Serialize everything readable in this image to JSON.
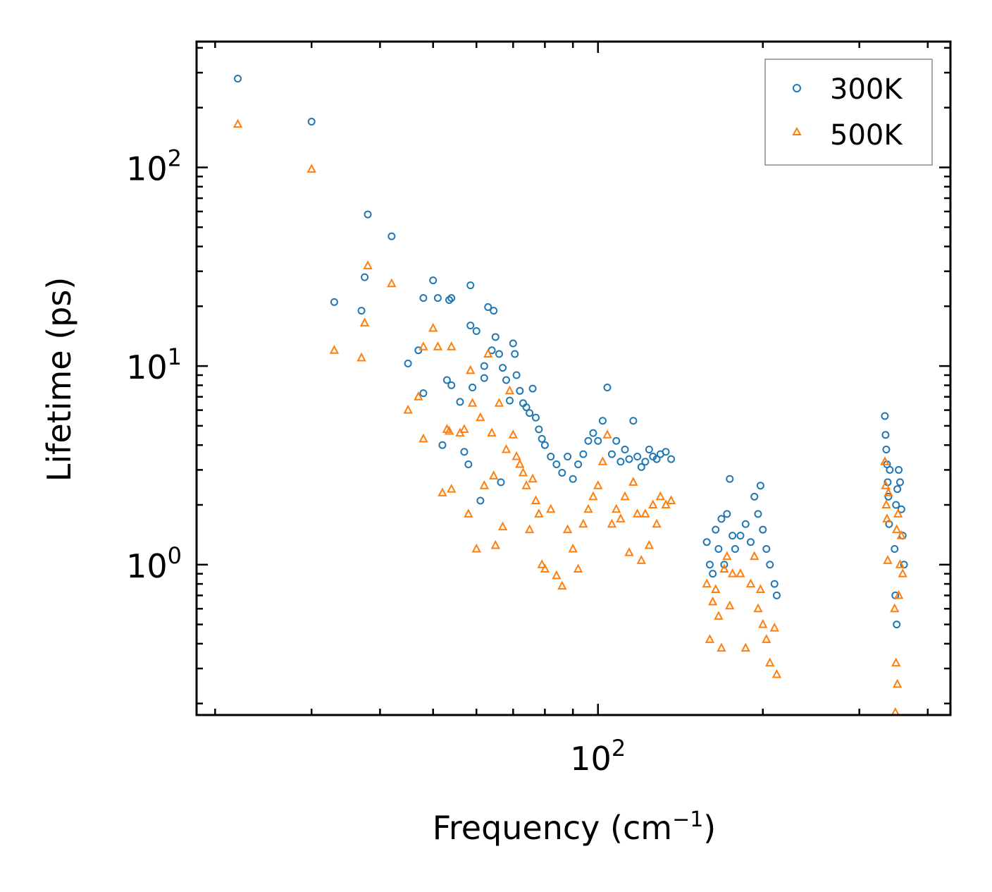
{
  "chart_data": {
    "type": "scatter",
    "title": "",
    "xlabel": "Frequency (cm",
    "xlabel_sup": "−1",
    "xlabel_end": ")",
    "ylabel": "Lifetime (ps)",
    "xscale": "log",
    "yscale": "log",
    "xlim": [
      18.5,
      440
    ],
    "ylim": [
      0.175,
      430
    ],
    "x_major_ticks": [
      {
        "value": 100,
        "base": "10",
        "exp": "2"
      }
    ],
    "y_major_ticks": [
      {
        "value": 1,
        "base": "10",
        "exp": "0"
      },
      {
        "value": 10,
        "base": "10",
        "exp": "1"
      },
      {
        "value": 100,
        "base": "10",
        "exp": "2"
      }
    ],
    "legend_position": "top-right",
    "colors": {
      "300K": "#1f77b4",
      "500K": "#ff7f0e"
    },
    "series": [
      {
        "name": "300K",
        "marker": "circle",
        "points": [
          [
            22,
            280
          ],
          [
            30,
            170
          ],
          [
            38,
            58
          ],
          [
            42,
            45
          ],
          [
            33,
            21
          ],
          [
            37,
            19
          ],
          [
            37.5,
            28
          ],
          [
            45,
            10.3
          ],
          [
            47,
            12
          ],
          [
            48,
            7.3
          ],
          [
            48,
            22
          ],
          [
            50,
            27
          ],
          [
            51,
            22
          ],
          [
            52,
            4
          ],
          [
            53,
            8.5
          ],
          [
            53.5,
            21.5
          ],
          [
            54,
            8
          ],
          [
            54,
            22
          ],
          [
            56,
            6.6
          ],
          [
            57,
            3.7
          ],
          [
            58,
            3.2
          ],
          [
            58.5,
            25.5
          ],
          [
            58.5,
            16
          ],
          [
            59,
            7.8
          ],
          [
            60,
            15
          ],
          [
            61,
            2.1
          ],
          [
            62,
            10
          ],
          [
            62,
            8.7
          ],
          [
            63,
            19.8
          ],
          [
            64,
            12
          ],
          [
            64.5,
            19
          ],
          [
            65,
            14
          ],
          [
            66,
            11.5
          ],
          [
            66.5,
            2.6
          ],
          [
            67,
            9.8
          ],
          [
            68,
            8.5
          ],
          [
            69,
            6.7
          ],
          [
            70,
            13
          ],
          [
            70.5,
            11.5
          ],
          [
            71,
            9
          ],
          [
            72,
            7.5
          ],
          [
            73,
            6.5
          ],
          [
            74,
            6.2
          ],
          [
            75,
            5.8
          ],
          [
            76,
            7.7
          ],
          [
            77,
            5.5
          ],
          [
            78,
            4.8
          ],
          [
            79,
            4.3
          ],
          [
            80,
            4
          ],
          [
            82,
            3.5
          ],
          [
            84,
            3.2
          ],
          [
            86,
            2.9
          ],
          [
            88,
            3.5
          ],
          [
            90,
            2.7
          ],
          [
            92,
            3.2
          ],
          [
            94,
            3.6
          ],
          [
            96,
            4.2
          ],
          [
            98,
            4.6
          ],
          [
            100,
            4.2
          ],
          [
            102,
            5.3
          ],
          [
            104,
            7.8
          ],
          [
            106,
            3.6
          ],
          [
            108,
            4.2
          ],
          [
            110,
            3.3
          ],
          [
            112,
            3.8
          ],
          [
            114,
            3.4
          ],
          [
            116,
            5.3
          ],
          [
            118,
            3.5
          ],
          [
            120,
            3.1
          ],
          [
            122,
            3.3
          ],
          [
            124,
            3.8
          ],
          [
            126,
            3.5
          ],
          [
            128,
            3.4
          ],
          [
            130,
            3.6
          ],
          [
            133,
            3.7
          ],
          [
            136,
            3.4
          ],
          [
            158,
            1.3
          ],
          [
            160,
            1.0
          ],
          [
            162,
            0.9
          ],
          [
            164,
            1.5
          ],
          [
            166,
            1.2
          ],
          [
            168,
            1.7
          ],
          [
            170,
            1.0
          ],
          [
            172,
            1.8
          ],
          [
            174,
            2.7
          ],
          [
            176,
            1.4
          ],
          [
            178,
            1.2
          ],
          [
            182,
            1.4
          ],
          [
            186,
            1.6
          ],
          [
            190,
            1.3
          ],
          [
            193,
            2.2
          ],
          [
            196,
            1.8
          ],
          [
            198,
            2.5
          ],
          [
            200,
            1.5
          ],
          [
            203,
            1.2
          ],
          [
            206,
            1.0
          ],
          [
            210,
            0.8
          ],
          [
            212,
            0.7
          ],
          [
            334,
            5.6
          ],
          [
            335,
            4.5
          ],
          [
            336,
            3.8
          ],
          [
            337,
            3.2
          ],
          [
            338,
            2.6
          ],
          [
            339,
            2.2
          ],
          [
            340,
            1.6
          ],
          [
            341,
            3.0
          ],
          [
            348,
            1.2
          ],
          [
            350,
            2.0
          ],
          [
            352,
            2.4
          ],
          [
            354,
            3.0
          ],
          [
            356,
            2.6
          ],
          [
            358,
            1.9
          ],
          [
            360,
            1.4
          ],
          [
            362,
            1.0
          ],
          [
            349,
            0.7
          ],
          [
            351,
            0.5
          ]
        ]
      },
      {
        "name": "500K",
        "marker": "triangle",
        "points": [
          [
            22,
            165
          ],
          [
            30,
            98
          ],
          [
            33,
            12
          ],
          [
            37,
            11
          ],
          [
            37.5,
            16.5
          ],
          [
            38,
            32
          ],
          [
            42,
            26
          ],
          [
            45,
            6
          ],
          [
            47,
            7
          ],
          [
            48,
            4.3
          ],
          [
            48,
            12.5
          ],
          [
            50,
            15.5
          ],
          [
            51,
            12.5
          ],
          [
            52,
            2.3
          ],
          [
            53,
            4.8
          ],
          [
            53.5,
            4.7
          ],
          [
            54,
            2.4
          ],
          [
            54,
            12.5
          ],
          [
            56,
            4.6
          ],
          [
            57,
            4.8
          ],
          [
            58,
            1.8
          ],
          [
            58.5,
            9.5
          ],
          [
            59,
            6.5
          ],
          [
            60,
            1.2
          ],
          [
            61,
            5.5
          ],
          [
            62,
            2.5
          ],
          [
            63,
            11.5
          ],
          [
            64,
            4.6
          ],
          [
            64.5,
            2.8
          ],
          [
            65,
            1.25
          ],
          [
            66,
            6.5
          ],
          [
            67,
            1.55
          ],
          [
            68,
            3.8
          ],
          [
            69,
            7.5
          ],
          [
            70,
            4.5
          ],
          [
            71,
            3.5
          ],
          [
            72,
            3.2
          ],
          [
            73,
            2.9
          ],
          [
            74,
            2.5
          ],
          [
            75,
            1.5
          ],
          [
            76,
            2.7
          ],
          [
            77,
            2.1
          ],
          [
            78,
            1.8
          ],
          [
            79,
            1.0
          ],
          [
            80,
            0.95
          ],
          [
            82,
            1.9
          ],
          [
            84,
            0.88
          ],
          [
            86,
            0.78
          ],
          [
            88,
            1.5
          ],
          [
            90,
            1.2
          ],
          [
            92,
            0.95
          ],
          [
            94,
            1.6
          ],
          [
            96,
            1.9
          ],
          [
            98,
            2.2
          ],
          [
            100,
            2.5
          ],
          [
            102,
            3.3
          ],
          [
            104,
            4.5
          ],
          [
            106,
            1.6
          ],
          [
            108,
            1.9
          ],
          [
            110,
            1.7
          ],
          [
            112,
            2.2
          ],
          [
            114,
            1.15
          ],
          [
            116,
            2.6
          ],
          [
            118,
            1.8
          ],
          [
            120,
            1.05
          ],
          [
            122,
            1.8
          ],
          [
            124,
            1.25
          ],
          [
            126,
            2.0
          ],
          [
            128,
            1.6
          ],
          [
            130,
            2.2
          ],
          [
            133,
            2.0
          ],
          [
            136,
            2.1
          ],
          [
            158,
            0.8
          ],
          [
            160,
            0.42
          ],
          [
            162,
            0.65
          ],
          [
            164,
            0.75
          ],
          [
            166,
            0.55
          ],
          [
            168,
            0.38
          ],
          [
            170,
            0.95
          ],
          [
            172,
            1.1
          ],
          [
            174,
            0.62
          ],
          [
            176,
            0.9
          ],
          [
            182,
            0.9
          ],
          [
            186,
            0.38
          ],
          [
            190,
            0.8
          ],
          [
            193,
            1.1
          ],
          [
            196,
            0.6
          ],
          [
            198,
            0.75
          ],
          [
            200,
            0.5
          ],
          [
            203,
            0.42
          ],
          [
            206,
            0.32
          ],
          [
            210,
            0.48
          ],
          [
            212,
            0.28
          ],
          [
            334,
            3.3
          ],
          [
            335,
            2.5
          ],
          [
            336,
            2.0
          ],
          [
            337,
            1.7
          ],
          [
            338,
            1.05
          ],
          [
            339,
            2.3
          ],
          [
            348,
            0.6
          ],
          [
            350,
            0.32
          ],
          [
            352,
            0.25
          ],
          [
            354,
            0.7
          ],
          [
            356,
            1.0
          ],
          [
            358,
            1.4
          ],
          [
            360,
            0.9
          ],
          [
            349,
            0.18
          ],
          [
            351,
            1.5
          ],
          [
            353,
            1.8
          ]
        ]
      }
    ]
  }
}
